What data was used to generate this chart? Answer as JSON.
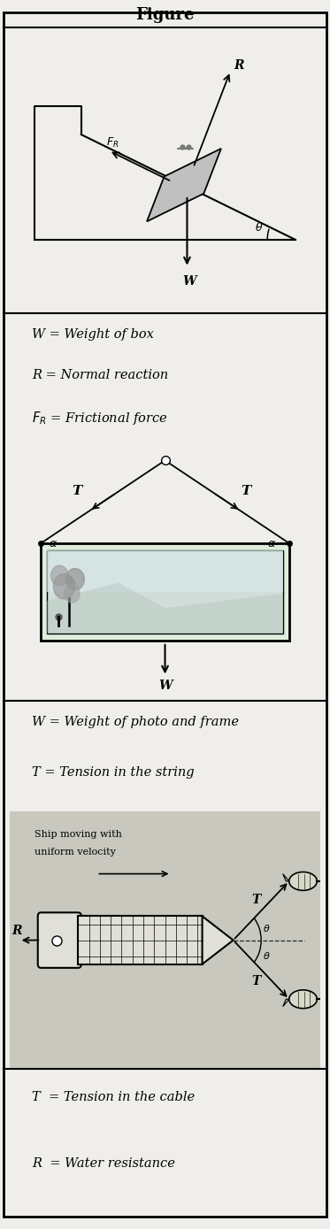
{
  "title": "Figure",
  "bg_light": "#f0eeea",
  "bg_panel": "#e8e6e0",
  "bg_ship": "#c8c8be",
  "divider_color": "#aaaaaa",
  "section1_lines": [
    "W = Weight of box",
    "R = Normal reaction",
    "$F_R$ = Frictional force"
  ],
  "section2_lines": [
    "W = Weight of photo and frame",
    "T = Tension in the string"
  ],
  "section3_lines": [
    "T  = Tension in the cable",
    "R  = Water resistance"
  ]
}
